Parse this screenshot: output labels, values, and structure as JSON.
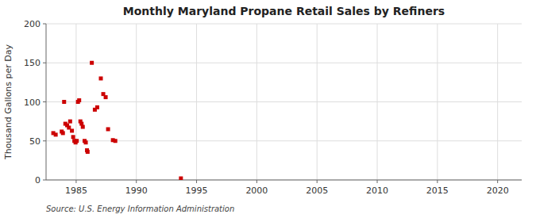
{
  "chart_data": {
    "type": "scatter",
    "title": "Monthly Maryland Propane Retail Sales by Refiners",
    "ylabel": "Thousand Gallons per Day",
    "source": "Source: U.S. Energy Information Administration",
    "color": "#cc0000",
    "marker": "square",
    "grid": true,
    "xlim": [
      1982.5,
      2022
    ],
    "ylim": [
      0,
      200
    ],
    "xticks": [
      1985,
      1990,
      1995,
      2000,
      2005,
      2010,
      2015,
      2020
    ],
    "yticks": [
      0,
      50,
      100,
      150,
      200
    ],
    "x": [
      1983.1,
      1983.3,
      1983.8,
      1983.9,
      1984.0,
      1984.1,
      1984.25,
      1984.4,
      1984.5,
      1984.65,
      1984.75,
      1984.85,
      1984.95,
      1985.05,
      1985.15,
      1985.25,
      1985.35,
      1985.45,
      1985.55,
      1985.7,
      1985.8,
      1985.9,
      1985.95,
      1986.3,
      1986.55,
      1986.75,
      1987.05,
      1987.25,
      1987.45,
      1987.65,
      1988.05,
      1988.25,
      1993.7
    ],
    "values": [
      60,
      58,
      62,
      60,
      100,
      72,
      70,
      67,
      75,
      63,
      55,
      50,
      48,
      50,
      100,
      102,
      75,
      72,
      68,
      50,
      48,
      38,
      36,
      150,
      90,
      93,
      130,
      110,
      106,
      65,
      51,
      50,
      2
    ]
  }
}
